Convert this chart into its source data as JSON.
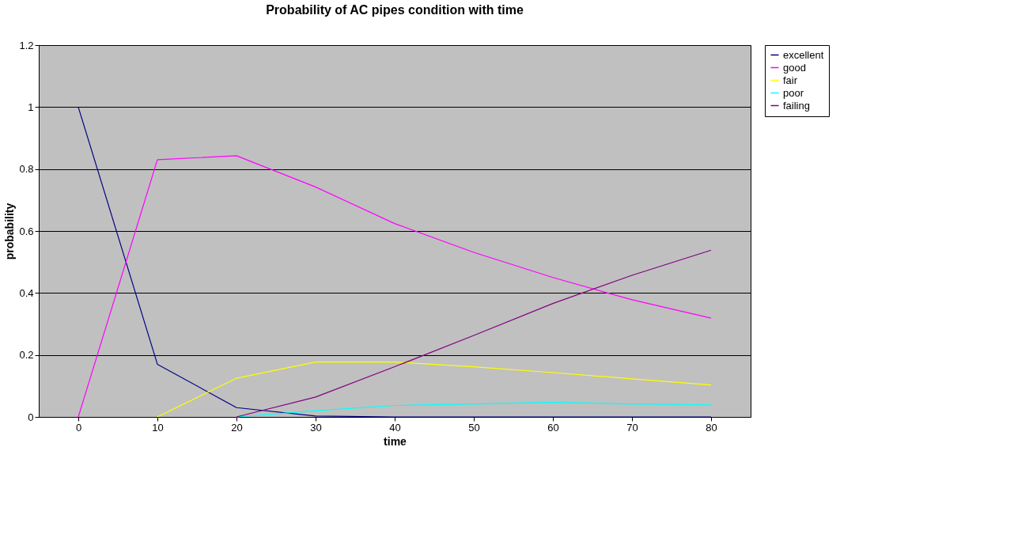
{
  "chart_data": {
    "type": "line",
    "title": "Probability of AC pipes condition with time",
    "xlabel": "time",
    "ylabel": "probability",
    "categories": [
      "0",
      "10",
      "20",
      "30",
      "40",
      "50",
      "60",
      "70",
      "80"
    ],
    "series": [
      {
        "name": "excellent",
        "color": "#000080",
        "values": [
          1,
          0.17,
          0.03,
          0.003,
          0,
          0,
          0,
          0,
          0
        ]
      },
      {
        "name": "good",
        "color": "#ff00ff",
        "values": [
          0,
          0.83,
          0.843,
          0.742,
          0.624,
          0.531,
          0.45,
          0.378,
          0.319
        ]
      },
      {
        "name": "fair",
        "color": "#ffff00",
        "values": [
          null,
          0,
          0.125,
          0.177,
          0.177,
          0.162,
          0.143,
          0.123,
          0.103
        ]
      },
      {
        "name": "poor",
        "color": "#00ffff",
        "values": [
          null,
          null,
          0,
          0.02,
          0.037,
          0.042,
          0.047,
          0.042,
          0.039
        ]
      },
      {
        "name": "failing",
        "color": "#800080",
        "values": [
          null,
          null,
          0,
          0.064,
          0.162,
          0.263,
          0.366,
          0.457,
          0.538
        ]
      }
    ],
    "ylim": [
      0,
      1.2
    ],
    "yticks": [
      0,
      0.2,
      0.4,
      0.6,
      0.8,
      1,
      1.2
    ],
    "grid": "y",
    "legend": "right",
    "marker": "none",
    "line_style": "solid"
  }
}
